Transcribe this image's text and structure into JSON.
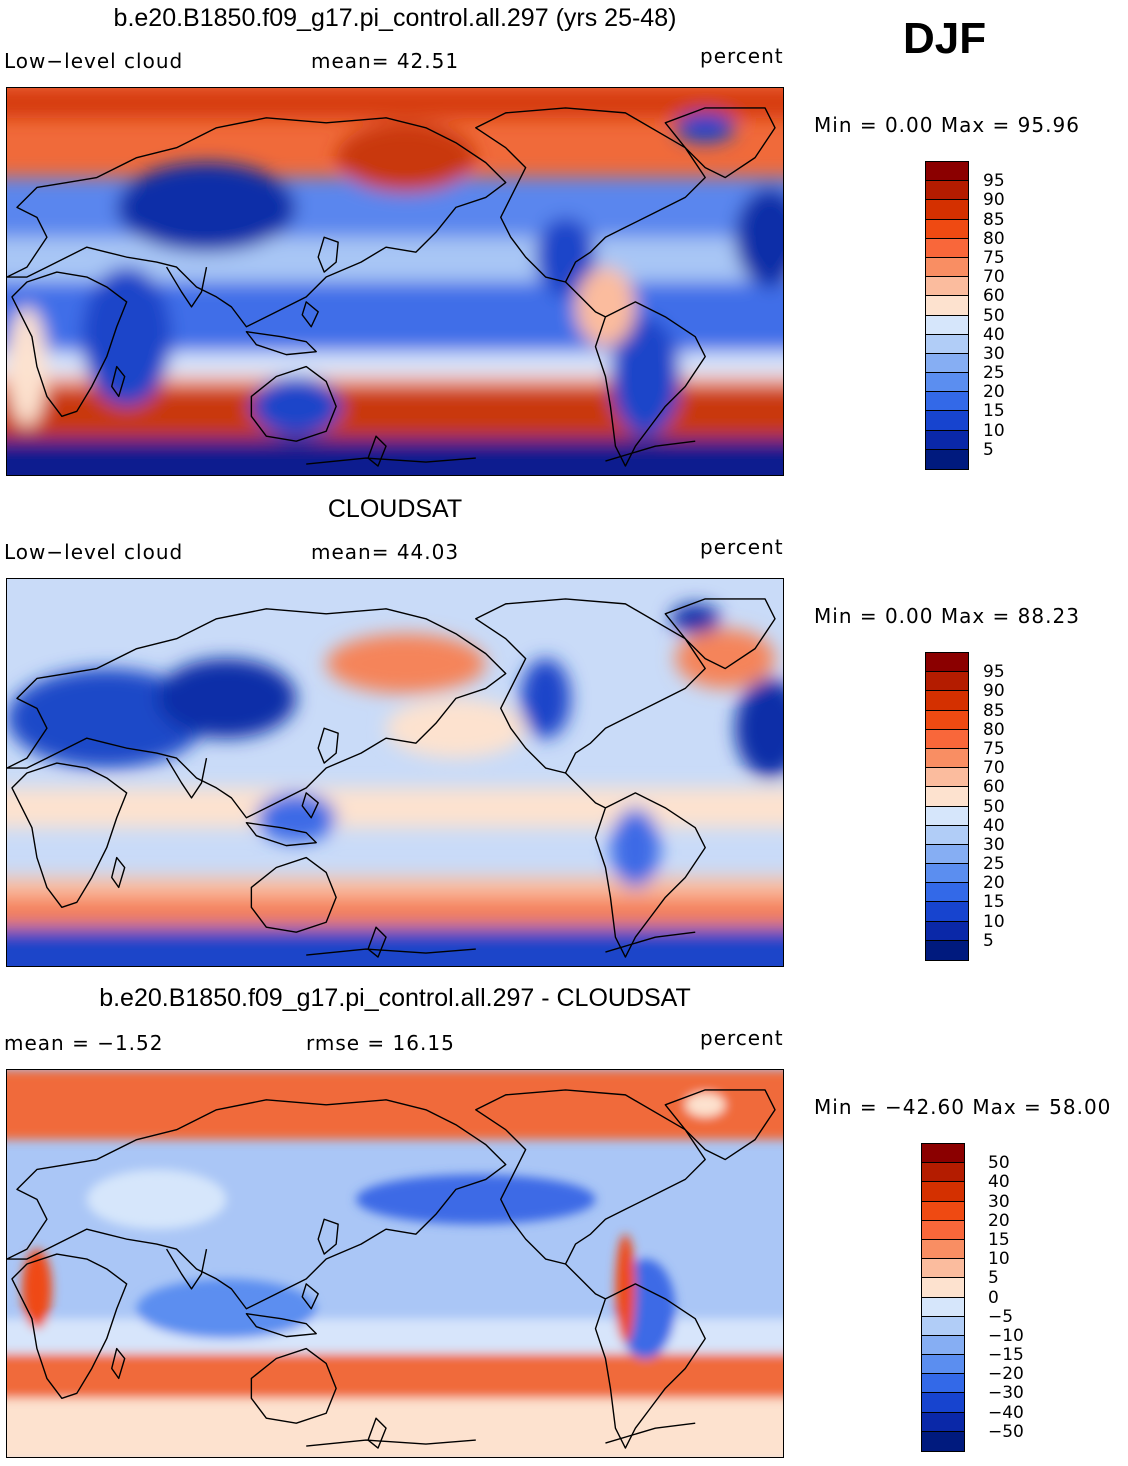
{
  "season_label": "DJF",
  "panels": [
    {
      "title": "b.e20.B1850.f09_g17.pi_control.all.297 (yrs 25-48)",
      "left_label": "Low−level cloud",
      "center_label": "mean=   42.51",
      "units": "percent",
      "minmax": "Min =     0.00  Max =    95.96",
      "levels": [
        "95",
        "90",
        "85",
        "80",
        "75",
        "70",
        "60",
        "50",
        "40",
        "30",
        "25",
        "20",
        "15",
        "10",
        "5"
      ],
      "colors": [
        "#8b0000",
        "#b41c00",
        "#d43000",
        "#ef4a12",
        "#f9673a",
        "#f98e63",
        "#fbbc9e",
        "#fde2cf",
        "#d6e6fb",
        "#b1cdf7",
        "#86aef3",
        "#5b8ef0",
        "#3369e8",
        "#1744cf",
        "#0a28a8",
        "#001a7e"
      ]
    },
    {
      "title": "CLOUDSAT",
      "left_label": "Low−level cloud",
      "center_label": "mean=   44.03",
      "units": "percent",
      "minmax": "Min =     0.00  Max =    88.23",
      "levels": [
        "95",
        "90",
        "85",
        "80",
        "75",
        "70",
        "60",
        "50",
        "40",
        "30",
        "25",
        "20",
        "15",
        "10",
        "5"
      ],
      "colors": [
        "#8b0000",
        "#b41c00",
        "#d43000",
        "#ef4a12",
        "#f9673a",
        "#f98e63",
        "#fbbc9e",
        "#fde2cf",
        "#d6e6fb",
        "#b1cdf7",
        "#86aef3",
        "#5b8ef0",
        "#3369e8",
        "#1744cf",
        "#0a28a8",
        "#001a7e"
      ]
    },
    {
      "title": "b.e20.B1850.f09_g17.pi_control.all.297 - CLOUDSAT",
      "left_label": "mean  =    −1.52",
      "center_label": "rmse  =    16.15",
      "units": "percent",
      "minmax": "Min = −42.60  Max =    58.00",
      "levels": [
        "50",
        "40",
        "30",
        "20",
        "15",
        "10",
        "5",
        "0",
        "−5",
        "−10",
        "−15",
        "−20",
        "−30",
        "−40",
        "−50"
      ],
      "colors": [
        "#8b0000",
        "#b41c00",
        "#d43000",
        "#ef4a12",
        "#f9673a",
        "#f98e63",
        "#fbbc9e",
        "#fde2cf",
        "#d6e6fb",
        "#b1cdf7",
        "#86aef3",
        "#5b8ef0",
        "#3369e8",
        "#1744cf",
        "#0a28a8",
        "#001a7e"
      ]
    }
  ]
}
